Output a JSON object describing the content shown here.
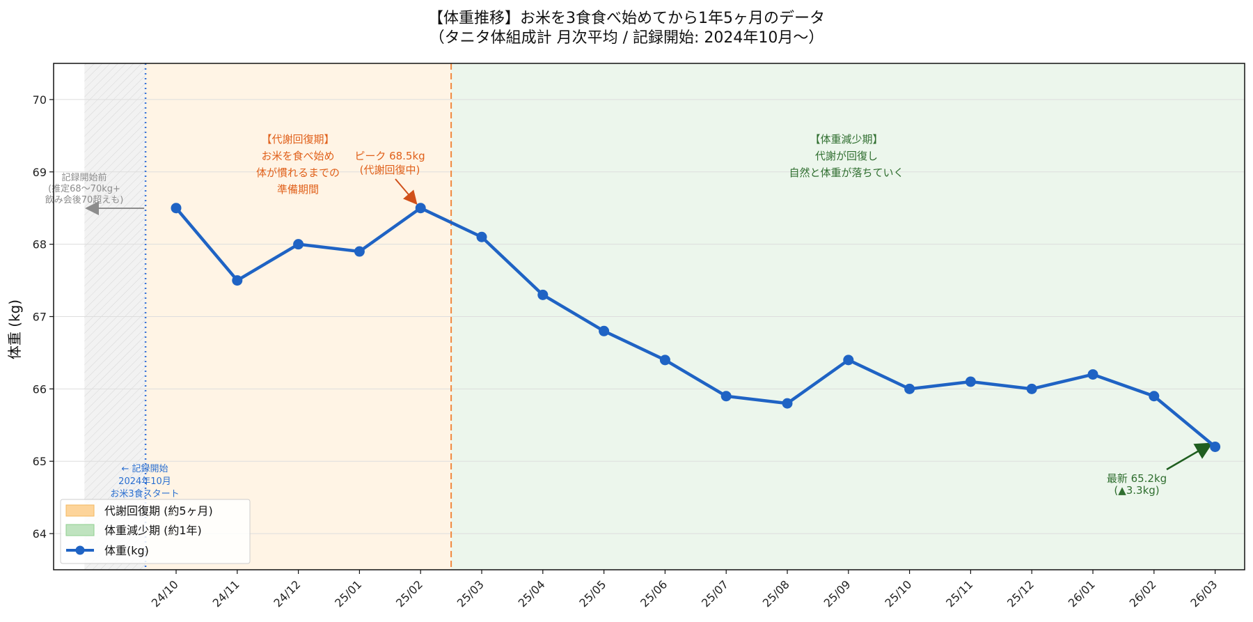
{
  "chart_data": {
    "type": "line",
    "title": "【体重推移】お米を3食食べ始めてから1年5ヶ月のデータ",
    "subtitle": "（タニタ体組成計 月次平均 / 記録開始: 2024年10月〜）",
    "ylabel": "体重 (kg)",
    "xlabel": "",
    "ylim": [
      63.5,
      70.5
    ],
    "yticks": [
      64,
      65,
      66,
      67,
      68,
      69,
      70
    ],
    "grid": true,
    "legend_position": "lower-left",
    "categories": [
      "24/10",
      "24/11",
      "24/12",
      "25/01",
      "25/02",
      "25/03",
      "25/04",
      "25/05",
      "25/06",
      "25/07",
      "25/08",
      "25/09",
      "25/10",
      "25/11",
      "25/12",
      "26/01",
      "26/02",
      "26/03"
    ],
    "series": [
      {
        "name": "体重(kg)",
        "color": "#1f63c4",
        "values": [
          68.5,
          67.5,
          68.0,
          67.9,
          68.5,
          68.1,
          67.3,
          66.8,
          66.4,
          65.9,
          65.8,
          66.4,
          66.0,
          66.1,
          66.0,
          66.2,
          65.9,
          65.2
        ]
      }
    ],
    "regions": [
      {
        "key": "pre",
        "legend": "",
        "color": "#d9d9d9",
        "hatched": true
      },
      {
        "key": "recovery",
        "legend": "代謝回復期 (約5ヶ月)",
        "color": "#fde3b8",
        "swatch_color": "#fdd49a"
      },
      {
        "key": "loss",
        "legend": "体重減少期 (約1年)",
        "color": "#e3f2e3",
        "swatch_color": "#bfe3bf"
      }
    ],
    "annotations": {
      "pre_record": [
        "記録開始前",
        "(推定68〜70kg+",
        "飲み会後70超えも)"
      ],
      "record_start": [
        "← 記録開始",
        "2024年10月",
        "お米3食スタート"
      ],
      "recovery_label": [
        "【代謝回復期】",
        "お米を食べ始め",
        "体が慣れるまでの",
        "準備期間"
      ],
      "peak": [
        "ピーク 68.5kg",
        "(代謝回復中)"
      ],
      "loss_label": [
        "【体重減少期】",
        "代謝が回復し",
        "自然と体重が落ちていく"
      ],
      "latest": [
        "最新 65.2kg",
        "(▲3.3kg)"
      ]
    },
    "colors": {
      "recovery_text": "#e0601a",
      "loss_text": "#2f6e2f",
      "start_text": "#2a6fd0",
      "pre_text": "#8c8c8c",
      "peak_arrow": "#d0501a",
      "latest_arrow": "#1f5e1f",
      "divider_dashed": "#f0883e",
      "divider_dotted": "#3a74d8"
    }
  }
}
